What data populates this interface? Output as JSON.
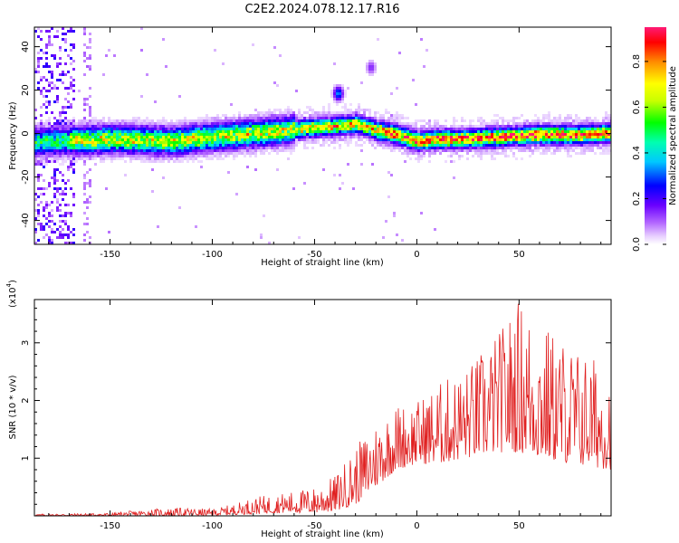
{
  "title": "C2E2.2024.078.12.17.R16",
  "chart_data": [
    {
      "type": "heatmap",
      "name": "spectrogram",
      "xlabel": "Height of straight line (km)",
      "ylabel": "Frequency (Hz)",
      "xlim": [
        -187,
        95
      ],
      "ylim": [
        -51,
        49
      ],
      "x_ticks": [
        -150,
        -100,
        -50,
        0,
        50
      ],
      "y_ticks": [
        -40,
        -20,
        0,
        20,
        40
      ],
      "colorbar": {
        "label": "Normalized spectral amplitude",
        "range": [
          0,
          0.95
        ],
        "ticks": [
          0.0,
          0.2,
          0.4,
          0.6,
          0.8
        ],
        "colors": [
          "#ffffff",
          "#d9b3ff",
          "#8a2be2",
          "#3300ff",
          "#00e5ff",
          "#00ff00",
          "#ffff00",
          "#ff8000",
          "#ff0000",
          "#ff1493"
        ]
      },
      "ridge": {
        "description_points": [
          [
            -180,
            -3
          ],
          [
            -150,
            -2
          ],
          [
            -120,
            -3
          ],
          [
            -100,
            -1
          ],
          [
            -75,
            1
          ],
          [
            -55,
            3
          ],
          [
            -40,
            4
          ],
          [
            -30,
            5
          ],
          [
            -20,
            2
          ],
          [
            -10,
            0
          ],
          [
            0,
            -3
          ],
          [
            10,
            -2
          ],
          [
            20,
            -2
          ],
          [
            40,
            -1
          ],
          [
            60,
            0
          ],
          [
            80,
            0
          ],
          [
            95,
            1
          ]
        ],
        "peak_amplitude": 0.95
      },
      "features": [
        {
          "x": -39,
          "y": 19,
          "amplitude": 0.35
        },
        {
          "x": -23,
          "y": 31,
          "amplitude": 0.15
        }
      ]
    },
    {
      "type": "line",
      "name": "snr",
      "xlabel": "Height of straight line (km)",
      "ylabel": "SNR (10 * v/v)",
      "y_multiplier": "(x10⁴)",
      "y_multiplier_base": "(x10",
      "y_multiplier_exp": "4",
      "xlim": [
        -187,
        95
      ],
      "ylim": [
        0,
        3.75
      ],
      "x_ticks": [
        -150,
        -100,
        -50,
        0,
        50
      ],
      "y_ticks": [
        1,
        2,
        3
      ],
      "color": "#e02020",
      "envelope": [
        {
          "x": -187,
          "low": 0.0,
          "high": 0.03
        },
        {
          "x": -150,
          "low": 0.0,
          "high": 0.05
        },
        {
          "x": -130,
          "low": 0.0,
          "high": 0.12
        },
        {
          "x": -115,
          "low": 0.0,
          "high": 0.14
        },
        {
          "x": -100,
          "low": 0.0,
          "high": 0.12
        },
        {
          "x": -90,
          "low": 0.02,
          "high": 0.2
        },
        {
          "x": -80,
          "low": 0.03,
          "high": 0.32
        },
        {
          "x": -65,
          "low": 0.05,
          "high": 0.4
        },
        {
          "x": -50,
          "low": 0.05,
          "high": 0.5
        },
        {
          "x": -40,
          "low": 0.08,
          "high": 0.7
        },
        {
          "x": -30,
          "low": 0.2,
          "high": 1.2
        },
        {
          "x": -20,
          "low": 0.5,
          "high": 1.65
        },
        {
          "x": -10,
          "low": 0.8,
          "high": 1.95
        },
        {
          "x": 0,
          "low": 0.9,
          "high": 2.0
        },
        {
          "x": 10,
          "low": 0.9,
          "high": 2.3
        },
        {
          "x": 25,
          "low": 1.0,
          "high": 2.6
        },
        {
          "x": 40,
          "low": 1.1,
          "high": 3.2
        },
        {
          "x": 50,
          "low": 1.1,
          "high": 3.8
        },
        {
          "x": 60,
          "low": 1.0,
          "high": 3.4
        },
        {
          "x": 75,
          "low": 0.9,
          "high": 3.0
        },
        {
          "x": 95,
          "low": 0.8,
          "high": 2.6
        }
      ]
    }
  ]
}
